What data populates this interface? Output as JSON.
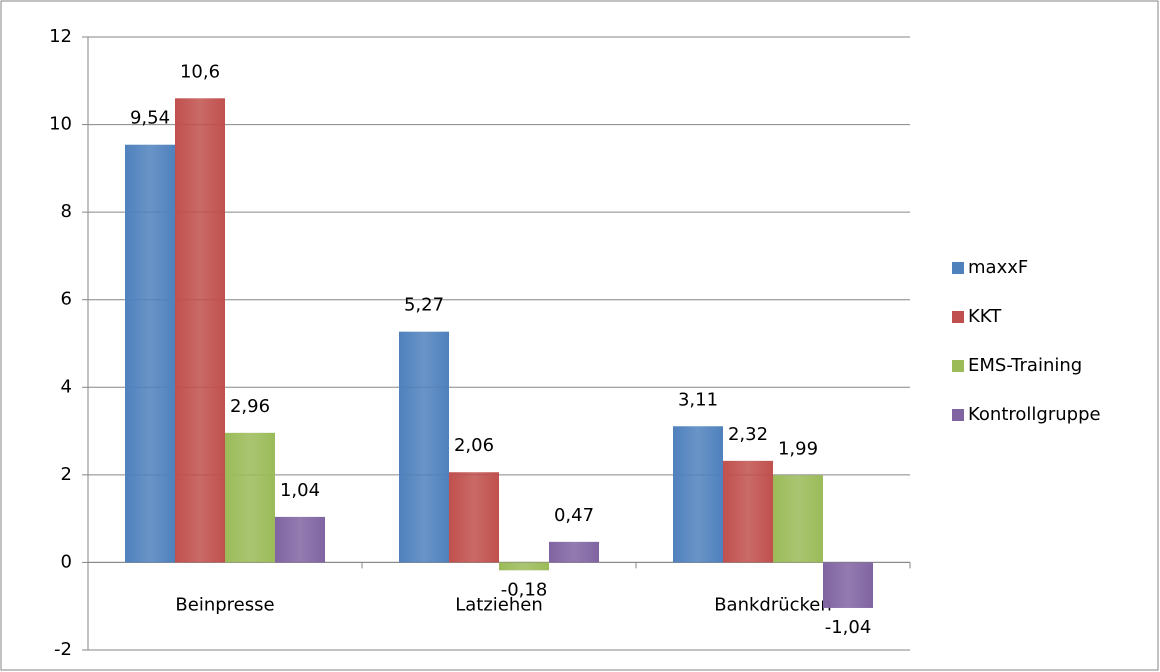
{
  "chart_data": {
    "type": "bar",
    "categories": [
      "Beinpresse",
      "Latziehen",
      "Bankdrücken"
    ],
    "series": [
      {
        "name": "maxxF",
        "color": "#4f81bd",
        "values": [
          9.54,
          5.27,
          3.11
        ],
        "value_labels": [
          "9,54",
          "5,27",
          "3,11"
        ]
      },
      {
        "name": "KKT",
        "color": "#c0504d",
        "values": [
          10.6,
          2.06,
          2.32
        ],
        "value_labels": [
          "10,6",
          "2,06",
          "2,32"
        ]
      },
      {
        "name": "EMS-Training",
        "color": "#9bbb59",
        "values": [
          2.96,
          -0.18,
          1.99
        ],
        "value_labels": [
          "2,96",
          "-0,18",
          "1,99"
        ]
      },
      {
        "name": "Kontrollgruppe",
        "color": "#8064a2",
        "values": [
          1.04,
          0.47,
          -1.04
        ],
        "value_labels": [
          "1,04",
          "0,47",
          "-1,04"
        ]
      }
    ],
    "ylim": [
      -2,
      12
    ],
    "yticks": [
      -2,
      0,
      2,
      4,
      6,
      8,
      10,
      12
    ],
    "grid": true,
    "legend": "right"
  }
}
